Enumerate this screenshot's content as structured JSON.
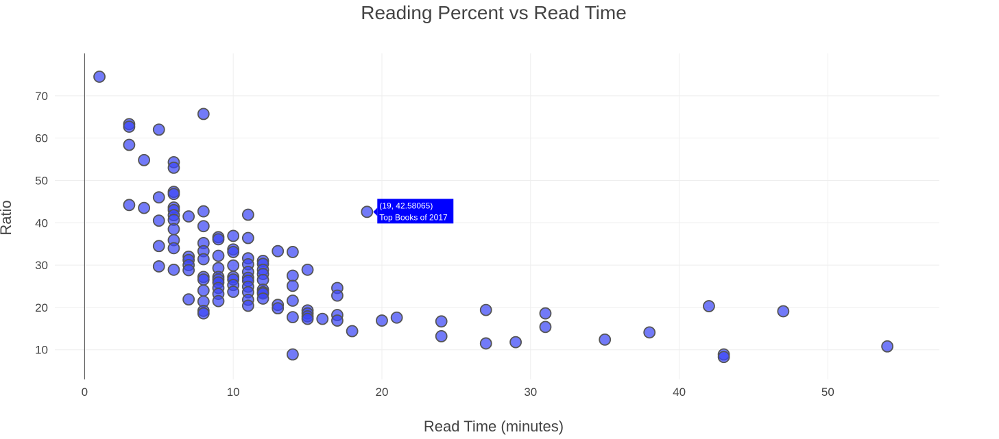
{
  "chart_data": {
    "type": "scatter",
    "title": "Reading Percent vs Read Time",
    "xlabel": "Read Time (minutes)",
    "ylabel": "Ratio",
    "xlim": [
      -2,
      57.5
    ],
    "ylim": [
      3,
      80
    ],
    "xticks": [
      0,
      10,
      20,
      30,
      40,
      50
    ],
    "yticks": [
      10,
      20,
      30,
      40,
      50,
      60,
      70
    ],
    "grid": true,
    "marker_color": "#3c46f5",
    "marker_outline": "#555555",
    "tooltip": {
      "point": [
        19,
        42.58065
      ],
      "line1": "(19, 42.58065)",
      "line2": "Top Books of 2017",
      "bg": "#0000ff"
    },
    "series": [
      {
        "points": [
          [
            1,
            74.5
          ],
          [
            3,
            63.3
          ],
          [
            3,
            62.7
          ],
          [
            3,
            58.4
          ],
          [
            3,
            44.2
          ],
          [
            4,
            54.8
          ],
          [
            4,
            43.5
          ],
          [
            5,
            62.0
          ],
          [
            5,
            46.0
          ],
          [
            5,
            40.5
          ],
          [
            5,
            34.5
          ],
          [
            5,
            29.7
          ],
          [
            6,
            54.3
          ],
          [
            6,
            53.0
          ],
          [
            6,
            47.3
          ],
          [
            6,
            46.8
          ],
          [
            6,
            43.6
          ],
          [
            6,
            43.0
          ],
          [
            6,
            41.8
          ],
          [
            6,
            40.7
          ],
          [
            6,
            38.5
          ],
          [
            6,
            35.9
          ],
          [
            6,
            34.0
          ],
          [
            6,
            28.9
          ],
          [
            7,
            41.5
          ],
          [
            7,
            32.0
          ],
          [
            7,
            31.2
          ],
          [
            7,
            30.0
          ],
          [
            7,
            28.8
          ],
          [
            7,
            21.9
          ],
          [
            8,
            65.7
          ],
          [
            8,
            42.7
          ],
          [
            8,
            39.2
          ],
          [
            8,
            35.2
          ],
          [
            8,
            33.3
          ],
          [
            8,
            31.4
          ],
          [
            8,
            27.2
          ],
          [
            8,
            26.6
          ],
          [
            8,
            24.0
          ],
          [
            8,
            21.4
          ],
          [
            8,
            19.2
          ],
          [
            8,
            18.6
          ],
          [
            9,
            36.6
          ],
          [
            9,
            36.1
          ],
          [
            9,
            32.2
          ],
          [
            9,
            29.3
          ],
          [
            9,
            27.2
          ],
          [
            9,
            26.6
          ],
          [
            9,
            25.9
          ],
          [
            9,
            24.6
          ],
          [
            9,
            23.2
          ],
          [
            9,
            21.5
          ],
          [
            10,
            36.9
          ],
          [
            10,
            33.7
          ],
          [
            10,
            33.1
          ],
          [
            10,
            29.9
          ],
          [
            10,
            27.2
          ],
          [
            10,
            26.6
          ],
          [
            10,
            25.3
          ],
          [
            10,
            23.7
          ],
          [
            11,
            41.9
          ],
          [
            11,
            36.4
          ],
          [
            11,
            31.6
          ],
          [
            11,
            30.2
          ],
          [
            11,
            28.4
          ],
          [
            11,
            27.0
          ],
          [
            11,
            26.3
          ],
          [
            11,
            24.9
          ],
          [
            11,
            23.6
          ],
          [
            11,
            21.8
          ],
          [
            11,
            20.4
          ],
          [
            12,
            31.0
          ],
          [
            12,
            30.3
          ],
          [
            12,
            28.9
          ],
          [
            12,
            27.9
          ],
          [
            12,
            26.5
          ],
          [
            12,
            24.2
          ],
          [
            12,
            23.6
          ],
          [
            12,
            23.3
          ],
          [
            12,
            22.1
          ],
          [
            13,
            33.3
          ],
          [
            13,
            20.6
          ],
          [
            13,
            19.8
          ],
          [
            14,
            33.1
          ],
          [
            14,
            27.5
          ],
          [
            14,
            25.1
          ],
          [
            14,
            21.6
          ],
          [
            14,
            17.7
          ],
          [
            14,
            8.9
          ],
          [
            15,
            28.9
          ],
          [
            15,
            19.3
          ],
          [
            15,
            18.6
          ],
          [
            15,
            17.9
          ],
          [
            15,
            17.3
          ],
          [
            16,
            17.3
          ],
          [
            17,
            24.6
          ],
          [
            17,
            22.8
          ],
          [
            17,
            18.2
          ],
          [
            17,
            16.9
          ],
          [
            18,
            14.4
          ],
          [
            19,
            42.58065
          ],
          [
            20,
            16.9
          ],
          [
            21,
            17.6
          ],
          [
            24,
            16.7
          ],
          [
            24,
            13.2
          ],
          [
            27,
            19.4
          ],
          [
            27,
            11.5
          ],
          [
            29,
            11.8
          ],
          [
            31,
            18.6
          ],
          [
            31,
            15.4
          ],
          [
            35,
            12.4
          ],
          [
            38,
            14.1
          ],
          [
            42,
            20.3
          ],
          [
            43,
            8.9
          ],
          [
            43,
            8.3
          ],
          [
            47,
            19.1
          ],
          [
            54,
            10.8
          ]
        ]
      }
    ]
  }
}
